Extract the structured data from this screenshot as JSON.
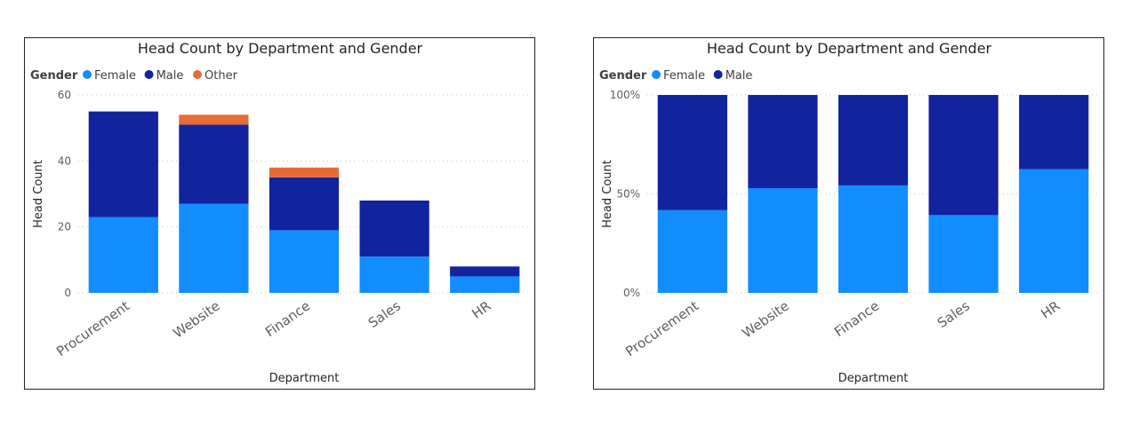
{
  "colors": {
    "Female": "#118dff",
    "Male": "#12239e",
    "Other": "#e66c37"
  },
  "chart_data": [
    {
      "type": "bar",
      "stacked": true,
      "title": "Head Count by Department and Gender",
      "legend_title": "Gender",
      "legend_position": "top-left",
      "xlabel": "Department",
      "ylabel": "Head Count",
      "categories": [
        "Procurement",
        "Website",
        "Finance",
        "Sales",
        "HR"
      ],
      "series": [
        {
          "name": "Female",
          "values": [
            23,
            27,
            19,
            11,
            5
          ]
        },
        {
          "name": "Male",
          "values": [
            32,
            24,
            16,
            17,
            3
          ]
        },
        {
          "name": "Other",
          "values": [
            0,
            3,
            3,
            0,
            0
          ]
        }
      ],
      "yticks": [
        "0",
        "20",
        "40",
        "60"
      ],
      "ylim": [
        0,
        60
      ],
      "grid": true
    },
    {
      "type": "bar",
      "stacked": true,
      "percent": true,
      "title": "Head Count by Department and Gender",
      "legend_title": "Gender",
      "legend_position": "top-left",
      "xlabel": "Department",
      "ylabel": "Head Count",
      "categories": [
        "Procurement",
        "Website",
        "Finance",
        "Sales",
        "HR"
      ],
      "series": [
        {
          "name": "Female",
          "values": [
            0.418,
            0.529,
            0.543,
            0.393,
            0.625
          ]
        },
        {
          "name": "Male",
          "values": [
            0.582,
            0.471,
            0.457,
            0.607,
            0.375
          ]
        }
      ],
      "yticks": [
        "0%",
        "50%",
        "100%"
      ],
      "ylim": [
        0,
        1
      ],
      "grid": true
    }
  ]
}
